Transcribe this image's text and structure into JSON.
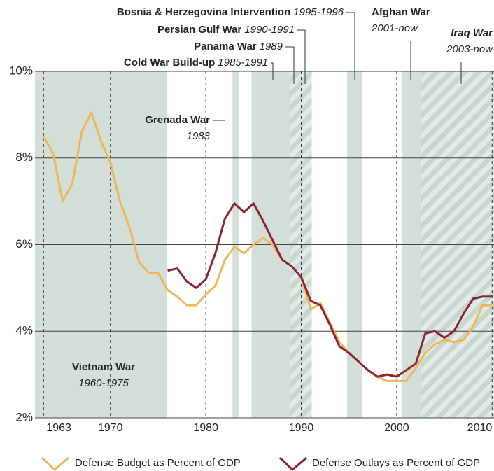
{
  "chart_data": {
    "type": "line",
    "x": [
      1963,
      1964,
      1965,
      1966,
      1967,
      1968,
      1969,
      1970,
      1971,
      1972,
      1973,
      1974,
      1975,
      1976,
      1977,
      1978,
      1979,
      1980,
      1981,
      1982,
      1983,
      1984,
      1985,
      1986,
      1987,
      1988,
      1989,
      1990,
      1991,
      1992,
      1993,
      1994,
      1995,
      1996,
      1997,
      1998,
      1999,
      2000,
      2001,
      2002,
      2003,
      2004,
      2005,
      2006,
      2007,
      2008,
      2009,
      2010
    ],
    "series": [
      {
        "name": "Defense Budget as Percent of GDP",
        "color": "#ecb85a",
        "values": [
          8.5,
          8.1,
          7.0,
          7.4,
          8.6,
          9.05,
          8.4,
          7.9,
          7.0,
          6.4,
          5.6,
          5.35,
          5.35,
          4.95,
          4.8,
          4.6,
          4.6,
          4.85,
          5.05,
          5.65,
          5.95,
          5.8,
          6.0,
          6.15,
          6.0,
          5.65,
          5.5,
          5.25,
          4.5,
          4.65,
          4.2,
          3.75,
          3.5,
          3.3,
          3.1,
          2.95,
          2.85,
          2.85,
          2.85,
          3.15,
          3.5,
          3.7,
          3.8,
          3.75,
          3.8,
          4.1,
          4.6,
          4.6
        ]
      },
      {
        "name": "Defense Outlays as Percent of GDP",
        "color": "#8a2432",
        "values": [
          null,
          null,
          null,
          null,
          null,
          null,
          null,
          null,
          null,
          null,
          null,
          null,
          null,
          5.4,
          5.45,
          5.15,
          5.0,
          5.2,
          5.8,
          6.6,
          6.95,
          6.75,
          6.95,
          6.55,
          6.1,
          5.65,
          5.5,
          5.25,
          4.7,
          4.6,
          4.15,
          3.65,
          3.5,
          3.3,
          3.1,
          2.95,
          3.0,
          2.95,
          3.1,
          3.25,
          3.95,
          4.0,
          3.85,
          4.0,
          4.4,
          4.75,
          4.8,
          4.8
        ]
      }
    ],
    "xlim": [
      1962.1,
      2010.2
    ],
    "xticks": [
      1963,
      1970,
      1980,
      1990,
      2000,
      2010
    ],
    "ylim": [
      2,
      10
    ],
    "yticks": [
      {
        "value": 2,
        "label": "2%"
      },
      {
        "value": 4,
        "label": "4%"
      },
      {
        "value": 6,
        "label": "6%"
      },
      {
        "value": 8,
        "label": "8%"
      },
      {
        "value": 10,
        "label": "10%"
      }
    ],
    "grid": true,
    "periods": [
      {
        "name": "Vietnam War",
        "years": "1960-1975",
        "span": [
          1962.1,
          1975.9
        ],
        "hatched": false
      },
      {
        "name": "Grenada War",
        "years": "1983",
        "span": [
          1982.8,
          1983.5
        ],
        "hatched": false
      },
      {
        "name": "Cold War Build-up",
        "years": "1985-1991",
        "span": [
          1984.8,
          1991.1
        ],
        "hatched": false
      },
      {
        "name": "Panama War",
        "years": "1989",
        "span": [
          1988.8,
          1989.9
        ],
        "hatched": true
      },
      {
        "name": "Persian Gulf War",
        "years": "1990-1991",
        "span": [
          1989.9,
          1991.1
        ],
        "hatched": true
      },
      {
        "name": "Bosnia & Herzegovina Intervention",
        "years": "1995-1996",
        "span": [
          1994.8,
          1996.4
        ],
        "hatched": false
      },
      {
        "name": "Afghan War",
        "years": "2001-now",
        "span": [
          2000.6,
          2010.2
        ],
        "hatched": false
      },
      {
        "name": "Iraq War",
        "years": "2003-now",
        "span": [
          2002.5,
          2010.2
        ],
        "hatched": true
      }
    ]
  }
}
